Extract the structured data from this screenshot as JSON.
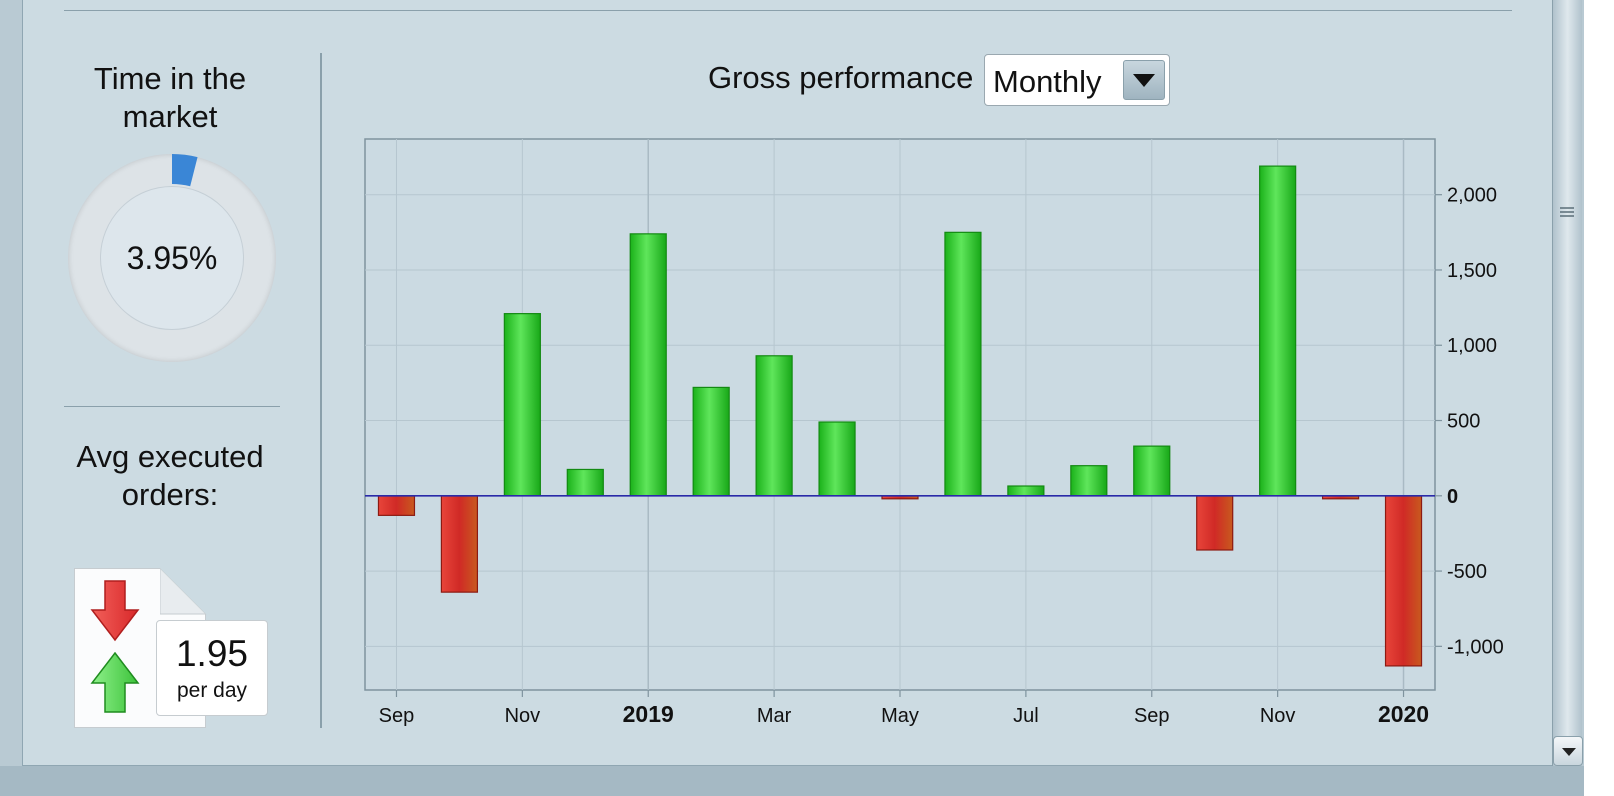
{
  "time_in_market": {
    "title": "Time in the market",
    "value_text": "3.95%",
    "fraction": 0.0395,
    "arc_color": "#3a86d6"
  },
  "avg_orders": {
    "label": "Avg executed orders:",
    "value": "1.95",
    "unit": "per day",
    "icons": [
      "down-arrow-icon",
      "up-arrow-icon"
    ]
  },
  "chart_header": {
    "title": "Gross performance",
    "period_select": "Monthly"
  },
  "chart_data": {
    "type": "bar",
    "title": "Gross performance",
    "categories": [
      "2018-09",
      "2018-10",
      "2018-11",
      "2018-12",
      "2019-01",
      "2019-02",
      "2019-03",
      "2019-04",
      "2019-05",
      "2019-06",
      "2019-07",
      "2019-08",
      "2019-09",
      "2019-10",
      "2019-11",
      "2019-12",
      "2020-01"
    ],
    "values": [
      -130,
      -640,
      1210,
      175,
      1740,
      720,
      930,
      490,
      -20,
      1750,
      65,
      200,
      330,
      -360,
      2190,
      -20,
      -1130
    ],
    "ylim": [
      -1290,
      2370
    ],
    "yticks": [
      2000,
      1500,
      1000,
      500,
      0,
      -500,
      -1000
    ],
    "ytick_labels": [
      "2,000",
      "1,500",
      "1,000",
      "500",
      "0",
      "-500",
      "-1,000"
    ],
    "xtick_labels": [
      {
        "label": "Sep",
        "index": 0,
        "bold": false
      },
      {
        "label": "Nov",
        "index": 2,
        "bold": false
      },
      {
        "label": "2019",
        "index": 4,
        "bold": true
      },
      {
        "label": "Mar",
        "index": 6,
        "bold": false
      },
      {
        "label": "May",
        "index": 8,
        "bold": false
      },
      {
        "label": "Jul",
        "index": 10,
        "bold": false
      },
      {
        "label": "Sep",
        "index": 12,
        "bold": false
      },
      {
        "label": "Nov",
        "index": 14,
        "bold": false
      },
      {
        "label": "2020",
        "index": 16,
        "bold": true
      }
    ],
    "grid": true,
    "colors": {
      "positive": "#22c31f",
      "negative": "#d83a2a",
      "zero_line": "#2a2aa8"
    }
  }
}
